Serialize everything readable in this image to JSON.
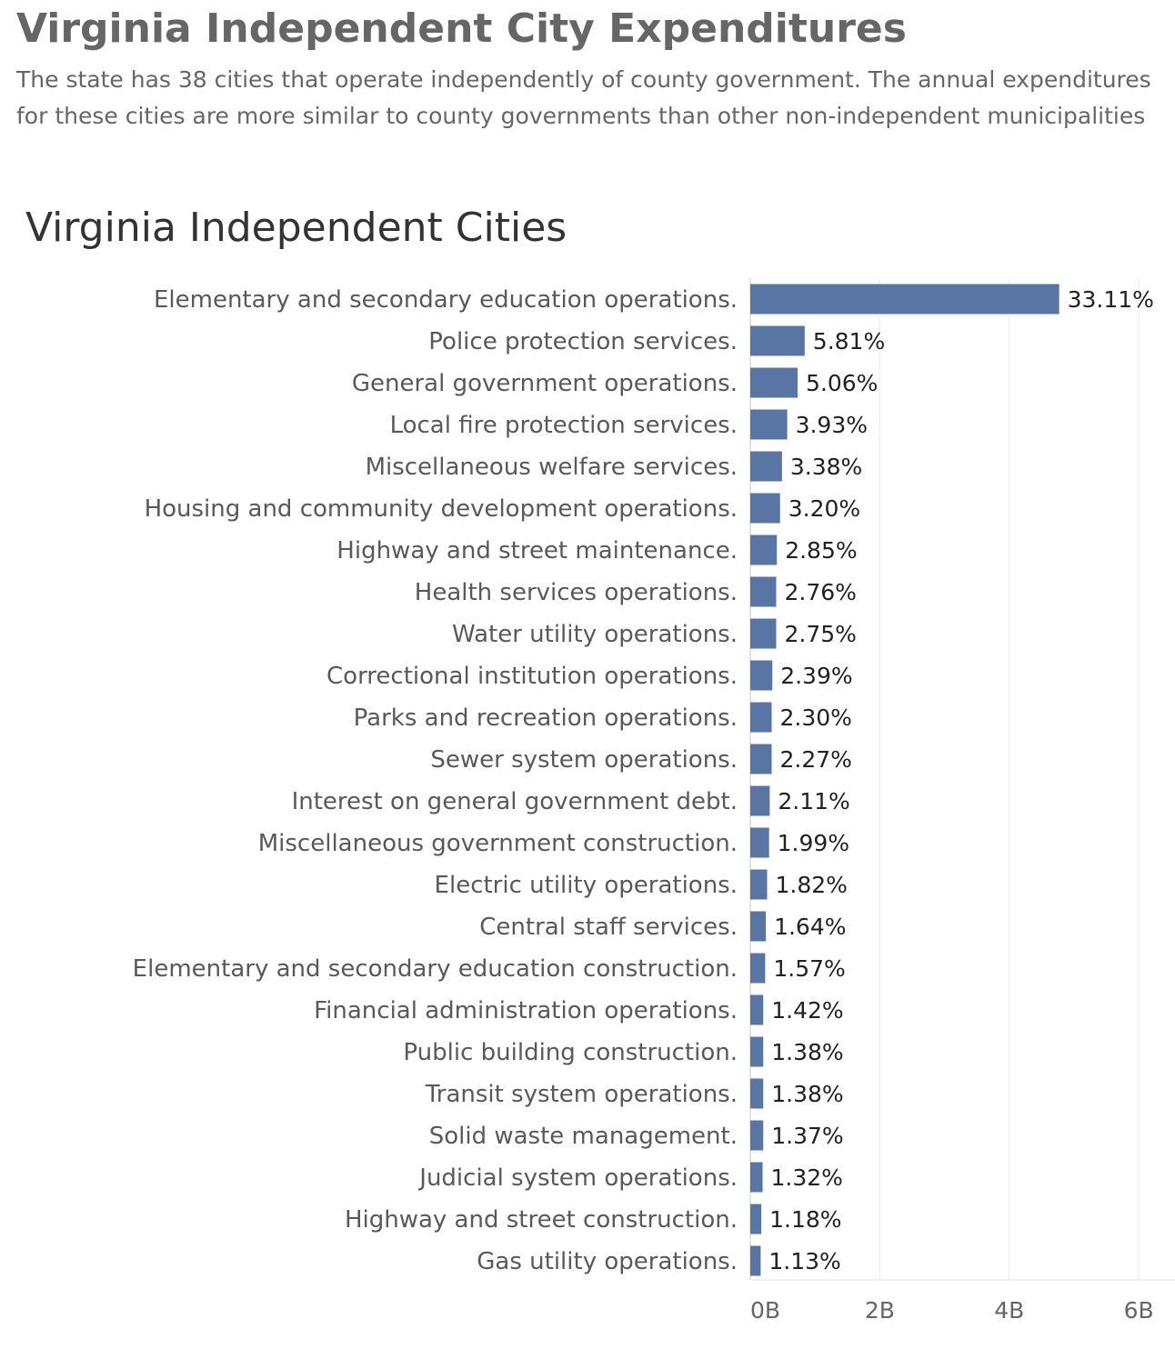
{
  "page": {
    "title": "Virginia Independent City Expenditures",
    "description_lines": [
      "The state has 38 cities that operate independently of county government. The annual expenditures",
      "for these cities are more similar to county governments than other non-independent municipalities"
    ]
  },
  "chart_data": {
    "type": "bar",
    "orientation": "horizontal",
    "title": "Virginia Independent Cities",
    "xlabel": "",
    "ylabel": "",
    "categories": [
      "Elementary and secondary education operations.",
      "Police protection services.",
      "General government operations.",
      "Local fire protection services.",
      "Miscellaneous welfare services.",
      "Housing and community development operations.",
      "Highway and street maintenance.",
      "Health services operations.",
      "Water utility operations.",
      "Correctional institution operations.",
      "Parks and recreation operations.",
      "Sewer system operations.",
      "Interest on general government debt.",
      "Miscellaneous government construction.",
      "Electric utility operations.",
      "Central staff services.",
      "Elementary and secondary education construction.",
      "Financial administration operations.",
      "Public building construction.",
      "Transit system operations.",
      "Solid waste management.",
      "Judicial system operations.",
      "Highway and street construction.",
      "Gas utility operations."
    ],
    "values": [
      4.77,
      0.84,
      0.73,
      0.57,
      0.49,
      0.46,
      0.41,
      0.4,
      0.4,
      0.34,
      0.33,
      0.33,
      0.3,
      0.29,
      0.26,
      0.24,
      0.23,
      0.2,
      0.2,
      0.2,
      0.2,
      0.19,
      0.17,
      0.16
    ],
    "value_units": "billions",
    "data_labels": [
      "33.11%",
      "5.81%",
      "5.06%",
      "3.93%",
      "3.38%",
      "3.20%",
      "2.85%",
      "2.76%",
      "2.75%",
      "2.39%",
      "2.30%",
      "2.27%",
      "2.11%",
      "1.99%",
      "1.82%",
      "1.64%",
      "1.57%",
      "1.42%",
      "1.38%",
      "1.38%",
      "1.37%",
      "1.32%",
      "1.18%",
      "1.13%"
    ],
    "xlim": [
      0,
      6.6
    ],
    "xticks": [
      0,
      2,
      4,
      6
    ],
    "xtick_labels": [
      "0B",
      "2B",
      "4B",
      "6B"
    ],
    "grid": "vertical",
    "legend": "none",
    "bar_color": "#5975a4"
  }
}
